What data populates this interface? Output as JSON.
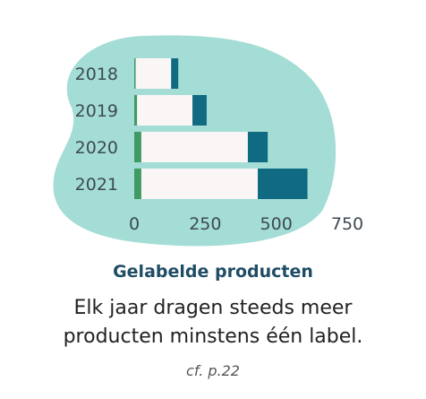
{
  "chart_data": {
    "type": "bar",
    "orientation": "horizontal",
    "stacked": true,
    "categories": [
      "2018",
      "2019",
      "2020",
      "2021"
    ],
    "series": [
      {
        "color": "#3f9a63",
        "values": [
          5,
          10,
          25,
          25
        ]
      },
      {
        "color": "#faf6f6",
        "values": [
          125,
          195,
          375,
          410
        ]
      },
      {
        "color": "#0f6a82",
        "values": [
          25,
          50,
          70,
          175
        ]
      }
    ],
    "x_ticks": [
      "0",
      "250",
      "500",
      "750"
    ],
    "xlim": [
      0,
      750
    ],
    "background_color": "#a4ddd6",
    "grid": false,
    "legend": "none"
  },
  "caption": {
    "title": "Gelabelde producten",
    "line1": "Elk jaar dragen steeds meer",
    "line2": "producten minstens één label.",
    "reference": "cf. p.22"
  }
}
